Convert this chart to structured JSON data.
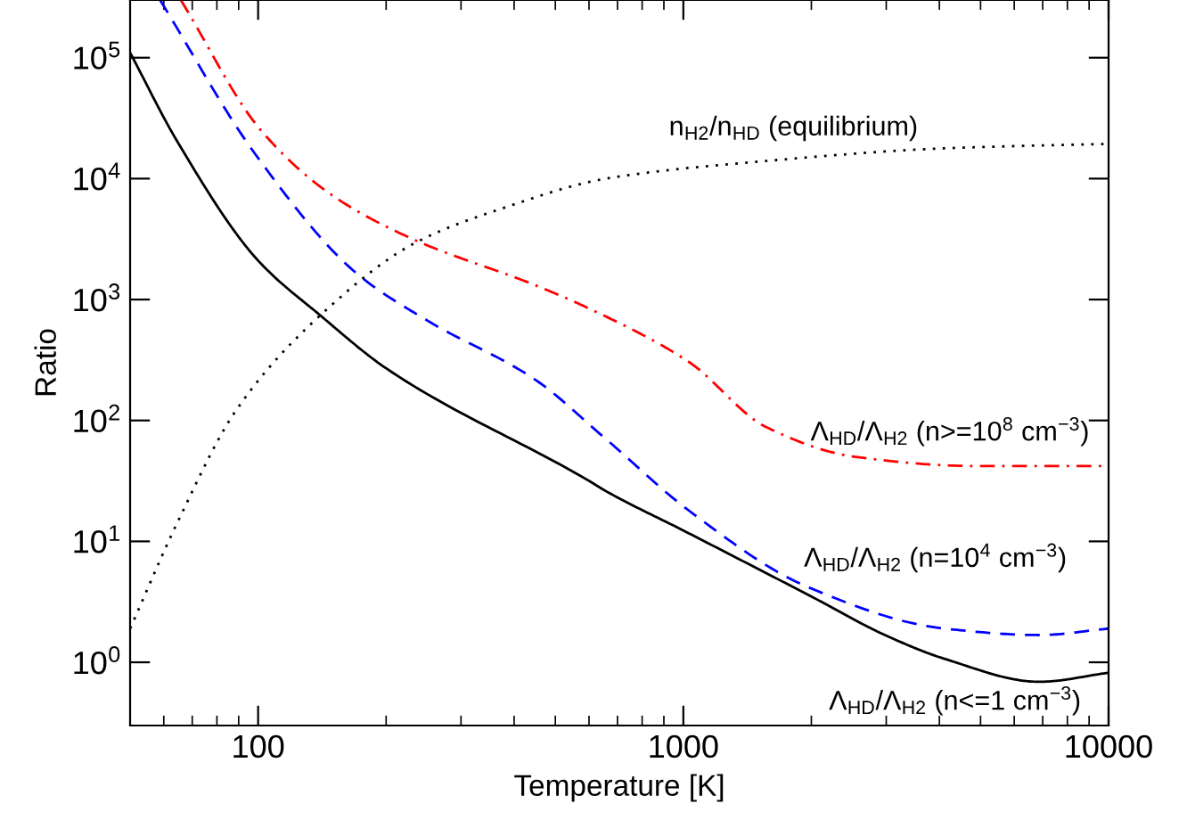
{
  "chart_data": {
    "type": "line",
    "xlabel": "Temperature [K]",
    "ylabel": "Ratio",
    "log": "xy",
    "xlim": [
      50,
      10000
    ],
    "ylim": [
      0.3,
      300000
    ],
    "xticks": [
      100,
      1000,
      10000
    ],
    "yticks": [
      {
        "value": 1,
        "label": "10$^{0}$"
      },
      {
        "value": 10,
        "label": "10$^{1}$"
      },
      {
        "value": 100,
        "label": "10$^{2}$"
      },
      {
        "value": 1000,
        "label": "10$^{3}$"
      },
      {
        "value": 10000,
        "label": "10$^{4}$"
      },
      {
        "value": 100000,
        "label": "10$^{5}$"
      }
    ],
    "grid": false,
    "series": [
      {
        "name": "Λ$_{HD}$/Λ$_{H2}$ (n<=1 cm$^{−3}$)",
        "color": "#000000",
        "line_style": "solid",
        "x": [
          50,
          64.7,
          100,
          140,
          200,
          597,
          658,
          1000,
          2000,
          2980,
          4110,
          6870,
          10000
        ],
        "values": [
          110000,
          20000,
          2100,
          740,
          270,
          32,
          26,
          12.3,
          3.5,
          1.68,
          1.07,
          0.69,
          0.82
        ]
      },
      {
        "name": "Λ$_{HD}$/Λ$_{H2}$ (n=10$^{4}$ cm$^{−3}$)",
        "color": "#0000ff",
        "line_style": "dashed",
        "x": [
          58.8,
          98.4,
          170,
          250,
          447,
          658,
          1030,
          1960,
          4110,
          6870,
          10000
        ],
        "values": [
          300000,
          16000,
          1660,
          670,
          219,
          70,
          18,
          4.2,
          1.9,
          1.68,
          1.9
        ]
      },
      {
        "name": "Λ$_{HD}$/Λ$_{H2}$ (n>=10$^{8}$ cm$^{−3}$)",
        "color": "#ff0000",
        "line_style": "dashdot",
        "x": [
          65.8,
          101.6,
          150,
          234,
          447,
          597,
          1030,
          1567,
          2540,
          4830,
          10000
        ],
        "values": [
          300000,
          25000,
          7200,
          3100,
          1320,
          850,
          305,
          88,
          50,
          42,
          42
        ]
      },
      {
        "name": "n$_{H2}$/n$_{HD}$ (equilibrium)",
        "color": "#000000",
        "line_style": "dotted",
        "x": [
          50,
          64.7,
          89,
          140,
          234,
          380,
          658,
          1567,
          4110,
          10000
        ],
        "values": [
          1.9,
          14.5,
          123,
          740,
          2940,
          5760,
          10000,
          14000,
          17800,
          19400
        ]
      }
    ]
  }
}
